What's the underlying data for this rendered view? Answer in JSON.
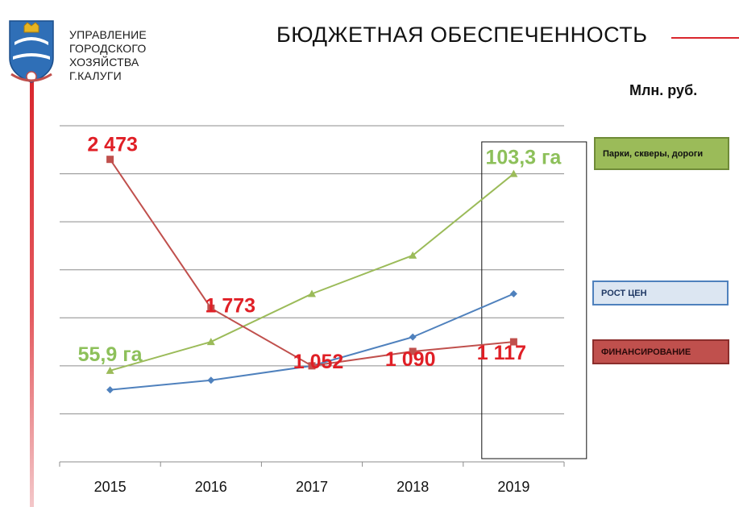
{
  "header": {
    "org_lines": [
      "УПРАВЛЕНИЕ",
      "ГОРОДСКОГО",
      "ХОЗЯЙСТВА",
      "Г.КАЛУГИ"
    ],
    "title": "БЮДЖЕТНАЯ ОБЕСПЕЧЕННОСТЬ",
    "unit": "Млн. руб.",
    "accent_color": "#d9262d",
    "logo_icon": "kaluga-coat-of-arms"
  },
  "chart_data": {
    "type": "line",
    "categories": [
      "2015",
      "2016",
      "2017",
      "2018",
      "2019"
    ],
    "ylim": [
      0,
      7
    ],
    "grid": true,
    "legend_position": "right",
    "highlight_category": "2019",
    "series": [
      {
        "name": "Парки, скверы, дороги",
        "color": "#9bbb59",
        "marker": "triangle",
        "values": [
          1.9,
          2.5,
          3.5,
          4.3,
          6.0
        ],
        "labels": [
          "55,9 га",
          "",
          "",
          "",
          "103,3 га"
        ]
      },
      {
        "name": "РОСТ ЦЕН",
        "color": "#4f81bd",
        "marker": "diamond",
        "values": [
          1.5,
          1.7,
          2.0,
          2.6,
          3.5
        ],
        "labels": [
          "",
          "",
          "",
          "",
          ""
        ]
      },
      {
        "name": "ФИНАНСИРОВАНИЕ",
        "color": "#c0504d",
        "marker": "square",
        "values": [
          6.3,
          3.2,
          2.0,
          2.3,
          2.5
        ],
        "labels": [
          "2 473",
          "1 773",
          "1 052",
          "1 090",
          "1 117"
        ]
      }
    ]
  }
}
